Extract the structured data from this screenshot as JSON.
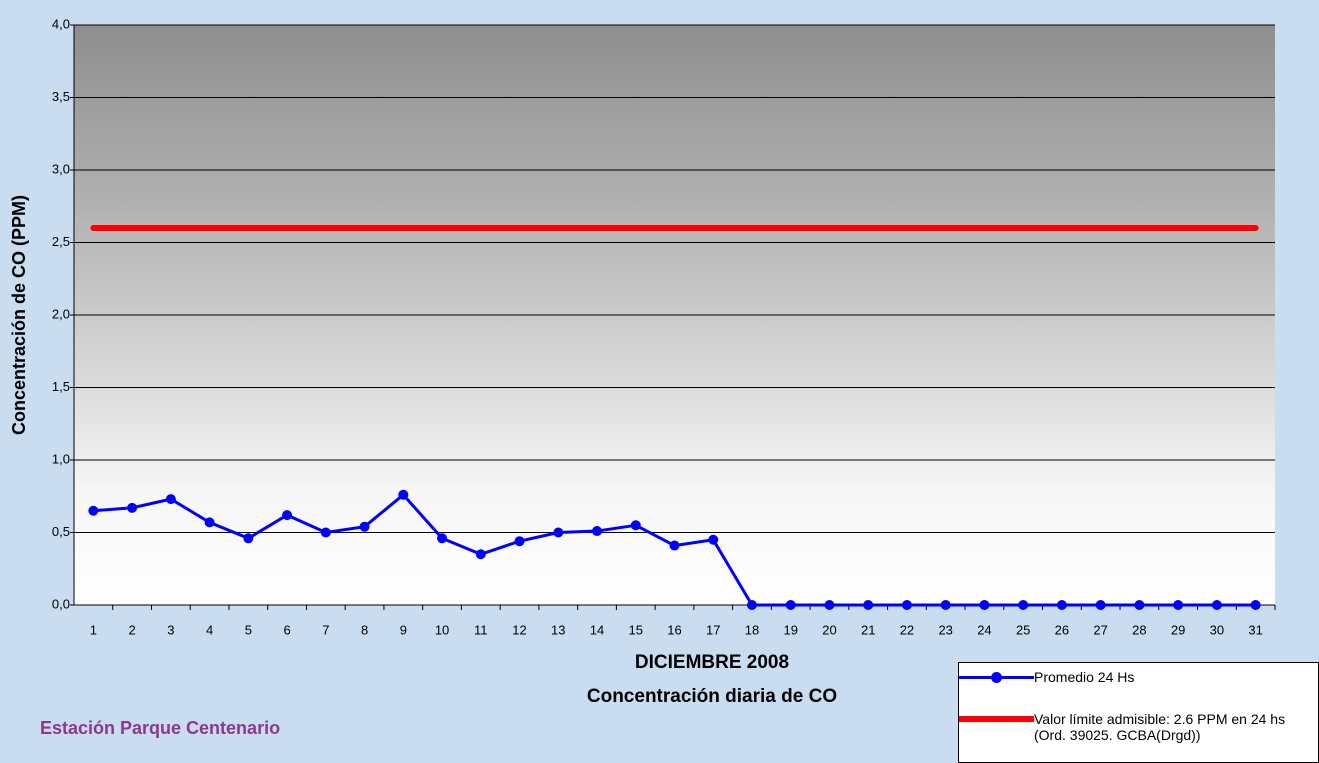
{
  "chart_data": {
    "type": "line",
    "title": "DICIEMBRE 2008",
    "subtitle": "Concentración diaria de CO",
    "y_label": "Concentración de CO (PPM)",
    "annotation": "Estación Parque Centenario",
    "categories": [
      "1",
      "2",
      "3",
      "4",
      "5",
      "6",
      "7",
      "8",
      "9",
      "10",
      "11",
      "12",
      "13",
      "14",
      "15",
      "16",
      "17",
      "18",
      "19",
      "20",
      "21",
      "22",
      "23",
      "24",
      "25",
      "26",
      "27",
      "28",
      "29",
      "30",
      "31"
    ],
    "series": [
      {
        "name": "Promedio 24 Hs",
        "color": "#0000ff",
        "marker": true,
        "values": [
          0.65,
          0.67,
          0.73,
          0.57,
          0.46,
          0.62,
          0.5,
          0.54,
          0.76,
          0.46,
          0.35,
          0.44,
          0.5,
          0.51,
          0.55,
          0.41,
          0.45,
          0,
          0,
          0,
          0,
          0,
          0,
          0,
          0,
          0,
          0,
          0,
          0,
          0,
          0
        ]
      },
      {
        "name": "Valor límite admisible: 2.6 PPM en 24 hs (Ord. 39025. GCBA(Drgd))",
        "color": "#ff0000",
        "marker": false,
        "values": [
          2.6,
          2.6,
          2.6,
          2.6,
          2.6,
          2.6,
          2.6,
          2.6,
          2.6,
          2.6,
          2.6,
          2.6,
          2.6,
          2.6,
          2.6,
          2.6,
          2.6,
          2.6,
          2.6,
          2.6,
          2.6,
          2.6,
          2.6,
          2.6,
          2.6,
          2.6,
          2.6,
          2.6,
          2.6,
          2.6,
          2.6
        ]
      }
    ],
    "ylim": [
      0,
      4
    ],
    "yticks": [
      {
        "value": 0,
        "label": "0,0"
      },
      {
        "value": 0.5,
        "label": "0,5"
      },
      {
        "value": 1,
        "label": "1,0"
      },
      {
        "value": 1.5,
        "label": "1,5"
      },
      {
        "value": 2,
        "label": "2,0"
      },
      {
        "value": 2.5,
        "label": "2,5"
      },
      {
        "value": 3,
        "label": "3,0"
      },
      {
        "value": 3.5,
        "label": "3,5"
      },
      {
        "value": 4,
        "label": "4,0"
      }
    ],
    "grid": true
  }
}
